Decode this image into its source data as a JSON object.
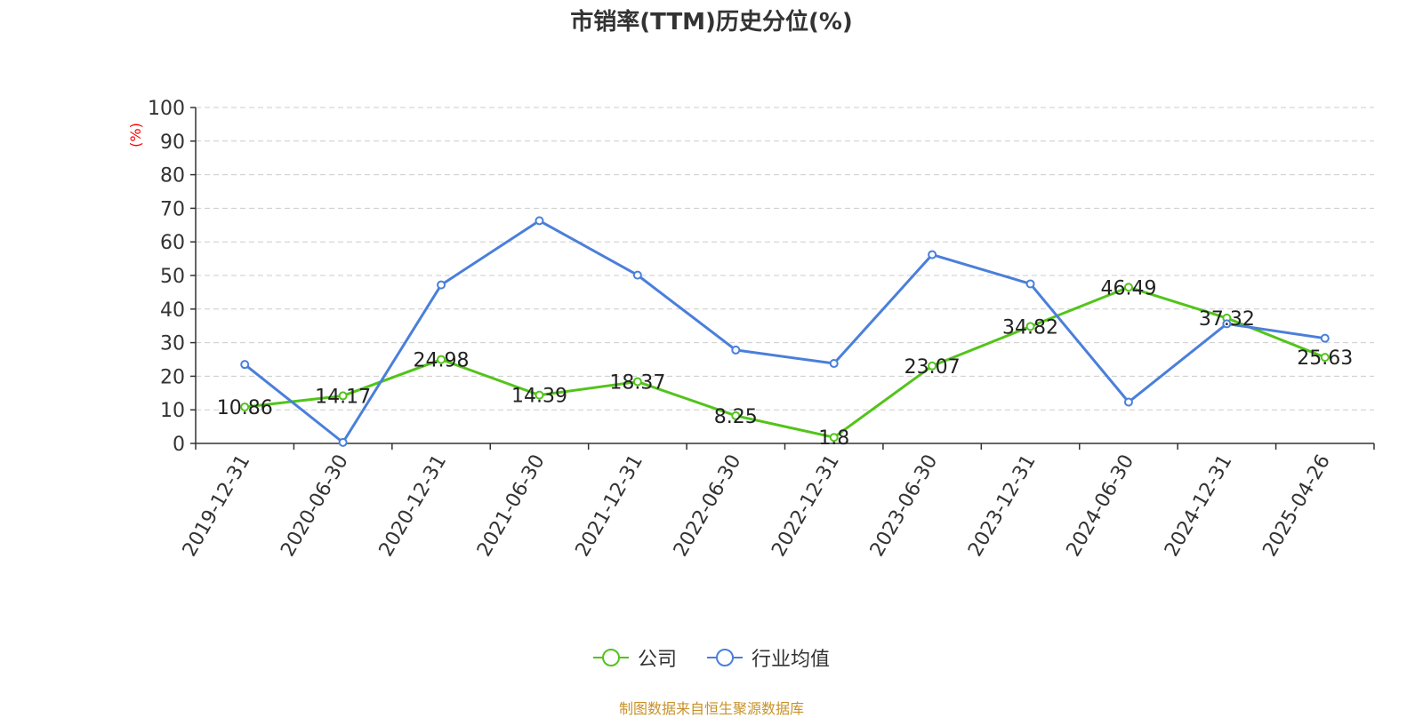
{
  "chart_data": {
    "type": "line",
    "title": "市销率(TTM)历史分位(%)",
    "ylabel": "(%)",
    "xlabel": "",
    "ylim": [
      0,
      100
    ],
    "yticks": [
      0,
      10,
      20,
      30,
      40,
      50,
      60,
      70,
      80,
      90,
      100
    ],
    "categories": [
      "2019-12-31",
      "2020-06-30",
      "2020-12-31",
      "2021-06-30",
      "2021-12-31",
      "2022-06-30",
      "2022-12-31",
      "2023-06-30",
      "2023-12-31",
      "2024-06-30",
      "2024-12-31",
      "2025-04-26"
    ],
    "series": [
      {
        "name": "公司",
        "color": "#52c41a",
        "show_labels": true,
        "values": [
          10.86,
          14.17,
          24.98,
          14.39,
          18.37,
          8.25,
          1.8,
          23.07,
          34.82,
          46.49,
          37.32,
          25.63
        ]
      },
      {
        "name": "行业均值",
        "color": "#4a7fdb",
        "show_labels": false,
        "values": [
          23.5,
          0.3,
          47.2,
          66.3,
          50.1,
          27.8,
          23.8,
          56.2,
          47.5,
          12.3,
          35.6,
          31.3
        ]
      }
    ],
    "grid": true,
    "legend_position": "bottom-center"
  },
  "ylabel_color": "#ff0000",
  "source_note": "制图数据来自恒生聚源数据库",
  "source_note_color": "#c8922a"
}
